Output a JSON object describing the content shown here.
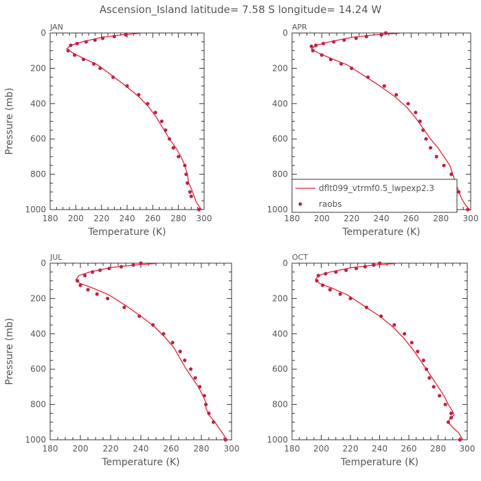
{
  "figure": {
    "title": "Ascension_Island   latitude=  7.58 S longitude=  14.24 W",
    "colors": {
      "model": "#e8202a",
      "raobs": "#c0204a"
    },
    "legend": {
      "panel": 1,
      "position": "bottom",
      "entries": [
        {
          "label": "dflt099_vtrmf0.5_lwpexp2.3",
          "kind": "line"
        },
        {
          "label": "raobs",
          "kind": "marker"
        }
      ]
    }
  },
  "chart_data": [
    {
      "type": "line",
      "panel_label": "JAN",
      "xlabel": "Temperature (K)",
      "ylabel": "Pressure (mb)",
      "xlim": [
        180,
        300
      ],
      "ylim": [
        1000,
        0
      ],
      "xticks": [
        180,
        200,
        220,
        240,
        260,
        280,
        300
      ],
      "yticks": [
        0,
        200,
        400,
        600,
        800,
        1000
      ],
      "series": [
        {
          "x": [
            250,
            236,
            220,
            205,
            196,
            193,
            197,
            205,
            217,
            228,
            239,
            249,
            257,
            263,
            268,
            273,
            278,
            282,
            285,
            287,
            288,
            290,
            292,
            294,
            298
          ],
          "y": [
            2,
            10,
            25,
            50,
            70,
            90,
            110,
            140,
            180,
            240,
            300,
            360,
            420,
            480,
            540,
            600,
            650,
            700,
            750,
            800,
            850,
            880,
            920,
            960,
            1000
          ]
        },
        {
          "x": [
            239,
            230,
            221,
            215,
            208,
            201,
            196,
            194,
            199,
            206,
            214,
            219,
            229,
            240,
            249,
            256,
            262,
            267,
            270,
            273,
            276,
            280,
            285,
            286,
            287,
            289,
            290,
            296
          ],
          "y": [
            10,
            20,
            30,
            40,
            50,
            60,
            70,
            100,
            125,
            150,
            175,
            200,
            250,
            300,
            350,
            400,
            450,
            500,
            550,
            600,
            650,
            700,
            750,
            800,
            850,
            900,
            925,
            1000
          ]
        }
      ]
    },
    {
      "type": "line",
      "panel_label": "APR",
      "xlabel": "Temperature (K)",
      "ylabel": "",
      "xlim": [
        180,
        300
      ],
      "ylim": [
        1000,
        0
      ],
      "xticks": [
        180,
        200,
        220,
        240,
        260,
        280,
        300
      ],
      "yticks": [
        0,
        200,
        400,
        600,
        800,
        1000
      ],
      "series": [
        {
          "x": [
            252,
            236,
            220,
            205,
            196,
            193,
            197,
            205,
            217,
            228,
            239,
            249,
            257,
            263,
            268,
            273,
            278,
            282,
            286,
            288,
            290,
            292,
            294,
            297,
            300
          ],
          "y": [
            2,
            10,
            25,
            50,
            70,
            90,
            110,
            140,
            180,
            240,
            300,
            360,
            420,
            480,
            540,
            600,
            650,
            700,
            750,
            800,
            850,
            900,
            940,
            980,
            1005
          ]
        },
        {
          "x": [
            243,
            240,
            230,
            223,
            215,
            208,
            201,
            196,
            193,
            194,
            200,
            206,
            213,
            220,
            231,
            242,
            250,
            258,
            263,
            266,
            268,
            270,
            273,
            277,
            282,
            287,
            289,
            292,
            298
          ],
          "y": [
            0,
            10,
            20,
            30,
            40,
            50,
            60,
            70,
            75,
            100,
            125,
            150,
            175,
            200,
            250,
            300,
            350,
            400,
            450,
            500,
            550,
            600,
            650,
            700,
            750,
            800,
            850,
            900,
            1000
          ]
        }
      ]
    },
    {
      "type": "line",
      "panel_label": "JUL",
      "xlabel": "Temperature (K)",
      "ylabel": "Pressure (mb)",
      "xlim": [
        180,
        300
      ],
      "ylim": [
        1000,
        0
      ],
      "xticks": [
        180,
        200,
        220,
        240,
        260,
        280,
        300
      ],
      "yticks": [
        0,
        200,
        400,
        600,
        800,
        1000
      ],
      "series": [
        {
          "x": [
            250,
            236,
            220,
            206,
            199,
            197,
            200,
            208,
            219,
            230,
            240,
            249,
            256,
            262,
            266,
            270,
            274,
            278,
            281,
            283,
            283,
            285,
            289,
            293,
            297
          ],
          "y": [
            2,
            10,
            25,
            50,
            70,
            95,
            115,
            140,
            180,
            240,
            300,
            360,
            420,
            480,
            540,
            600,
            650,
            700,
            750,
            790,
            820,
            860,
            900,
            950,
            1000
          ]
        },
        {
          "x": [
            240,
            235,
            227,
            219,
            213,
            208,
            203,
            198,
            200,
            205,
            211,
            218,
            229,
            239,
            248,
            255,
            261,
            266,
            269,
            273,
            276,
            279,
            282,
            283,
            285,
            288,
            296
          ],
          "y": [
            0,
            10,
            20,
            30,
            40,
            50,
            70,
            100,
            125,
            150,
            175,
            200,
            250,
            300,
            350,
            400,
            450,
            500,
            550,
            600,
            650,
            700,
            750,
            800,
            850,
            900,
            1000
          ]
        }
      ]
    },
    {
      "type": "line",
      "panel_label": "OCT",
      "xlabel": "Temperature (K)",
      "ylabel": "",
      "xlim": [
        180,
        300
      ],
      "ylim": [
        1000,
        0
      ],
      "xticks": [
        180,
        200,
        220,
        240,
        260,
        280,
        300
      ],
      "yticks": [
        0,
        200,
        400,
        600,
        800,
        1000
      ],
      "series": [
        {
          "x": [
            251,
            237,
            221,
            206,
            198,
            196,
            199,
            207,
            218,
            229,
            240,
            249,
            256,
            262,
            267,
            272,
            276,
            280,
            284,
            287,
            290,
            291,
            288,
            287,
            290,
            294,
            297
          ],
          "y": [
            2,
            10,
            25,
            50,
            70,
            95,
            115,
            140,
            180,
            240,
            300,
            360,
            420,
            480,
            540,
            600,
            650,
            700,
            750,
            800,
            840,
            860,
            880,
            900,
            930,
            960,
            1000
          ]
        },
        {
          "x": [
            240,
            236,
            230,
            224,
            217,
            210,
            203,
            198,
            197,
            201,
            206,
            213,
            220,
            231,
            241,
            250,
            257,
            262,
            266,
            270,
            272,
            274,
            277,
            281,
            285,
            289,
            289,
            287,
            295
          ],
          "y": [
            0,
            10,
            20,
            30,
            40,
            50,
            60,
            70,
            100,
            125,
            150,
            175,
            200,
            250,
            300,
            350,
            400,
            450,
            500,
            550,
            600,
            650,
            700,
            750,
            800,
            850,
            875,
            900,
            1000
          ]
        }
      ]
    }
  ]
}
